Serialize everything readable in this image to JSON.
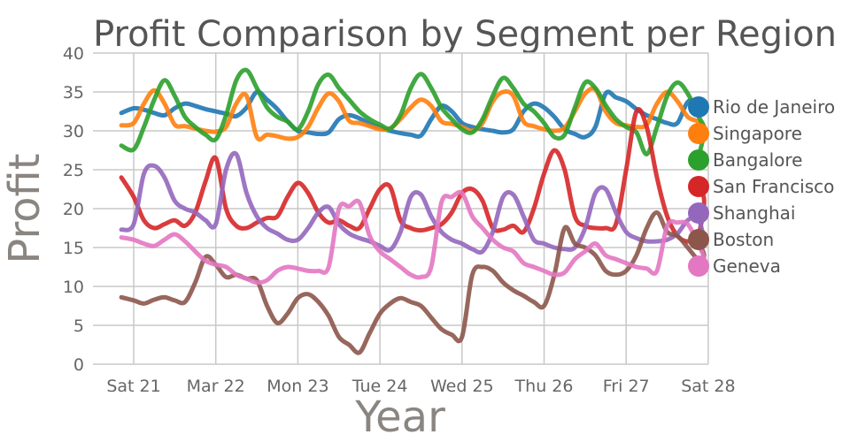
{
  "chart_data": {
    "type": "line",
    "title": "Profit Comparison by Segment per Region",
    "xlabel": "Year",
    "ylabel": "Profit",
    "ylim": [
      0,
      40
    ],
    "yticks": [
      0,
      5,
      10,
      15,
      20,
      25,
      30,
      35,
      40
    ],
    "xlim": [
      -0.5,
      7
    ],
    "categories": [
      "Sat 21",
      "Mar 22",
      "Mon 23",
      "Tue 24",
      "Wed 25",
      "Thu 26",
      "Fri 27",
      "Sat 28"
    ],
    "grid": true,
    "legend_position": "right",
    "x": [
      -0.15,
      0,
      0.125,
      0.25,
      0.375,
      0.5,
      0.625,
      0.75,
      0.875,
      1,
      1.125,
      1.25,
      1.375,
      1.5,
      1.625,
      1.75,
      1.875,
      2,
      2.125,
      2.25,
      2.375,
      2.5,
      2.625,
      2.75,
      2.875,
      3,
      3.125,
      3.25,
      3.375,
      3.5,
      3.625,
      3.75,
      3.875,
      4,
      4.125,
      4.25,
      4.375,
      4.5,
      4.625,
      4.75,
      4.875,
      5,
      5.125,
      5.25,
      5.375,
      5.5,
      5.625,
      5.75,
      5.875,
      6,
      6.125,
      6.25,
      6.375,
      6.5,
      6.625,
      6.75,
      6.875,
      6.95
    ],
    "series": [
      {
        "name": "Rio de Janeiro",
        "color": "#1f77b4",
        "values": [
          32.3,
          32.9,
          32.7,
          32.3,
          32.0,
          32.9,
          33.5,
          33.2,
          32.8,
          32.5,
          32.2,
          31.9,
          33.0,
          35.0,
          34.0,
          32.8,
          31.2,
          30.0,
          29.8,
          29.6,
          29.8,
          31.5,
          32.0,
          31.6,
          30.9,
          30.4,
          30.0,
          29.7,
          29.5,
          29.4,
          31.5,
          33.2,
          32.5,
          31.0,
          30.5,
          30.2,
          30.0,
          29.8,
          30.2,
          32.5,
          33.5,
          33.0,
          31.8,
          30.2,
          29.6,
          29.2,
          30.5,
          34.8,
          34.3,
          33.8,
          32.8,
          32.0,
          31.5,
          31.0,
          31.0,
          33.7,
          33.6,
          32.5
        ]
      },
      {
        "name": "Singapore",
        "color": "#ff7f0e",
        "values": [
          30.7,
          31.0,
          33.5,
          35.2,
          33.5,
          30.8,
          30.6,
          30.3,
          30.0,
          29.9,
          30.5,
          33.5,
          34.5,
          29.2,
          29.5,
          29.3,
          29.0,
          29.2,
          30.5,
          33.0,
          34.8,
          33.8,
          31.3,
          31.0,
          30.6,
          30.2,
          30.3,
          31.5,
          33.0,
          34.0,
          33.2,
          31.2,
          30.9,
          30.5,
          30.0,
          31.0,
          33.8,
          35.0,
          34.5,
          31.2,
          30.6,
          30.2,
          30.0,
          30.4,
          32.5,
          34.8,
          35.3,
          32.5,
          31.0,
          30.7,
          30.5,
          30.8,
          33.5,
          35.0,
          33.8,
          31.8,
          31.2,
          30.5
        ]
      },
      {
        "name": "Bangalore",
        "color": "#2ca02c",
        "values": [
          28.1,
          27.6,
          30.5,
          34.0,
          36.5,
          34.5,
          31.8,
          30.5,
          29.5,
          28.9,
          32.0,
          36.5,
          37.8,
          35.5,
          33.0,
          31.8,
          31.2,
          30.2,
          32.5,
          36.0,
          37.2,
          35.5,
          34.0,
          32.5,
          31.5,
          30.8,
          30.3,
          32.0,
          35.5,
          37.3,
          35.5,
          33.0,
          31.5,
          30.2,
          29.8,
          31.5,
          34.5,
          36.8,
          35.5,
          33.5,
          32.5,
          31.0,
          29.2,
          29.5,
          33.0,
          36.2,
          35.5,
          33.3,
          31.5,
          30.5,
          29.8,
          27.0,
          30.5,
          34.5,
          36.2,
          34.8,
          32.0,
          30.0
        ]
      },
      {
        "name": "San Francisco",
        "color": "#d62728",
        "values": [
          24.0,
          21.5,
          18.5,
          17.5,
          18.0,
          18.5,
          17.8,
          19.5,
          23.5,
          26.5,
          20.0,
          17.8,
          17.5,
          18.2,
          18.8,
          19.0,
          21.5,
          23.3,
          22.0,
          19.5,
          18.2,
          18.5,
          17.8,
          17.5,
          20.0,
          22.5,
          22.8,
          18.5,
          17.5,
          17.2,
          17.5,
          18.0,
          19.5,
          22.0,
          22.5,
          21.0,
          17.5,
          17.3,
          17.8,
          17.0,
          20.0,
          24.5,
          27.5,
          25.0,
          19.0,
          17.8,
          17.5,
          17.5,
          18.0,
          25.0,
          32.5,
          30.5,
          24.0,
          19.0,
          16.5,
          15.8,
          16.5,
          21.0
        ]
      },
      {
        "name": "Shanghai",
        "color": "#9467bd",
        "values": [
          17.3,
          18.0,
          24.5,
          25.5,
          24.0,
          21.0,
          20.0,
          19.5,
          18.5,
          18.0,
          25.0,
          27.0,
          22.0,
          19.0,
          17.5,
          16.8,
          16.0,
          16.0,
          17.5,
          19.5,
          20.2,
          18.0,
          16.8,
          16.2,
          15.8,
          15.2,
          14.7,
          17.0,
          21.5,
          21.8,
          19.0,
          17.0,
          16.0,
          15.5,
          14.8,
          14.5,
          17.0,
          21.5,
          21.8,
          19.0,
          16.0,
          15.5,
          15.0,
          14.8,
          15.0,
          17.5,
          22.0,
          22.5,
          19.5,
          17.0,
          16.2,
          15.8,
          15.8,
          16.0,
          16.8,
          18.5,
          18.8,
          16.0
        ]
      },
      {
        "name": "Boston",
        "color": "#8c564b",
        "values": [
          8.6,
          8.2,
          7.8,
          8.3,
          8.6,
          8.2,
          8.0,
          10.5,
          13.8,
          12.8,
          11.2,
          11.5,
          11.0,
          10.8,
          7.5,
          5.3,
          6.5,
          8.5,
          9.0,
          8.0,
          6.2,
          3.5,
          2.5,
          1.5,
          4.0,
          6.5,
          7.8,
          8.5,
          8.0,
          7.5,
          6.0,
          4.5,
          3.8,
          3.5,
          11.5,
          12.5,
          12.0,
          10.5,
          9.5,
          8.8,
          8.0,
          7.5,
          11.5,
          17.5,
          15.5,
          15.0,
          14.0,
          12.0,
          11.5,
          12.0,
          14.0,
          17.5,
          19.5,
          17.0,
          16.5,
          15.0,
          13.5,
          14.0
        ]
      },
      {
        "name": "Geneva",
        "color": "#e377c2",
        "values": [
          16.3,
          16.0,
          15.5,
          15.2,
          16.0,
          16.7,
          15.8,
          14.5,
          13.3,
          12.8,
          12.5,
          11.5,
          11.0,
          10.5,
          10.8,
          12.0,
          12.5,
          12.3,
          12.0,
          12.0,
          12.5,
          20.0,
          20.3,
          20.8,
          16.5,
          14.5,
          13.5,
          12.5,
          11.5,
          11.2,
          12.5,
          20.8,
          21.5,
          22.0,
          19.0,
          17.5,
          16.0,
          15.0,
          14.5,
          13.0,
          12.5,
          12.0,
          11.5,
          11.8,
          13.5,
          14.5,
          15.5,
          14.0,
          13.5,
          13.0,
          12.5,
          12.3,
          12.0,
          17.8,
          18.2,
          18.0,
          15.5,
          13.5
        ]
      }
    ]
  }
}
